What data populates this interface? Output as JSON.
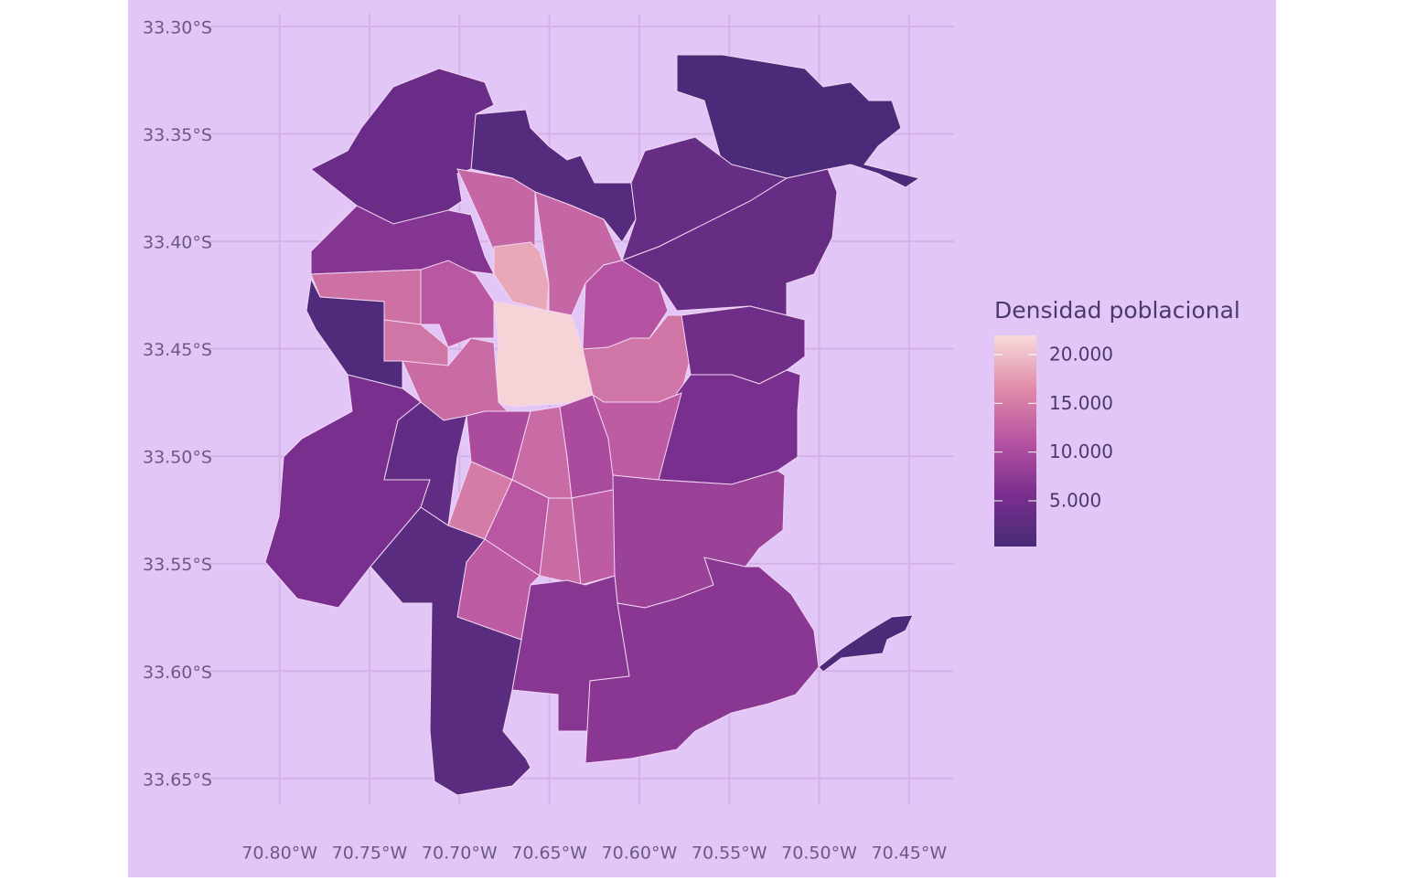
{
  "chart_data": {
    "type": "choropleth",
    "values": [
      700,
      1800,
      3900,
      3500,
      3600,
      6500,
      13000,
      18500,
      13000,
      11000,
      14000,
      11500,
      21500,
      14500,
      1200,
      13500,
      14500,
      4600,
      5500,
      5500,
      3000,
      10000,
      13500,
      10000,
      12000,
      15000,
      11500,
      13500,
      12000,
      12000,
      8500,
      2300,
      6800,
      7000,
      800
    ],
    "xlim": [
      -70.84,
      -70.425
    ],
    "ylim": [
      -33.662,
      -33.294
    ],
    "xticks": [
      {
        "value": -70.8,
        "label": "70.80°W"
      },
      {
        "value": -70.75,
        "label": "70.75°W"
      },
      {
        "value": -70.7,
        "label": "70.70°W"
      },
      {
        "value": -70.65,
        "label": "70.65°W"
      },
      {
        "value": -70.6,
        "label": "70.60°W"
      },
      {
        "value": -70.55,
        "label": "70.55°W"
      },
      {
        "value": -70.5,
        "label": "70.50°W"
      },
      {
        "value": -70.45,
        "label": "70.45°W"
      }
    ],
    "yticks": [
      {
        "value": -33.3,
        "label": "33.30°S"
      },
      {
        "value": -33.35,
        "label": "33.35°S"
      },
      {
        "value": -33.4,
        "label": "33.40°S"
      },
      {
        "value": -33.45,
        "label": "33.45°S"
      },
      {
        "value": -33.5,
        "label": "33.50°S"
      },
      {
        "value": -33.55,
        "label": "33.55°S"
      },
      {
        "value": -33.6,
        "label": "33.60°S"
      },
      {
        "value": -33.65,
        "label": "33.65°S"
      }
    ],
    "grid": true,
    "legend": {
      "title": "Densidad poblacional",
      "lim": [
        310,
        21970
      ],
      "ticks": [
        {
          "value": 5000,
          "label": "5.000"
        },
        {
          "value": 10000,
          "label": "10.000"
        },
        {
          "value": 15000,
          "label": "15.000"
        },
        {
          "value": 20000,
          "label": "20.000"
        }
      ],
      "colors": [
        "#472a78",
        "#7b2f8e",
        "#b753a2",
        "#e08ca8",
        "#f7dada"
      ]
    }
  }
}
